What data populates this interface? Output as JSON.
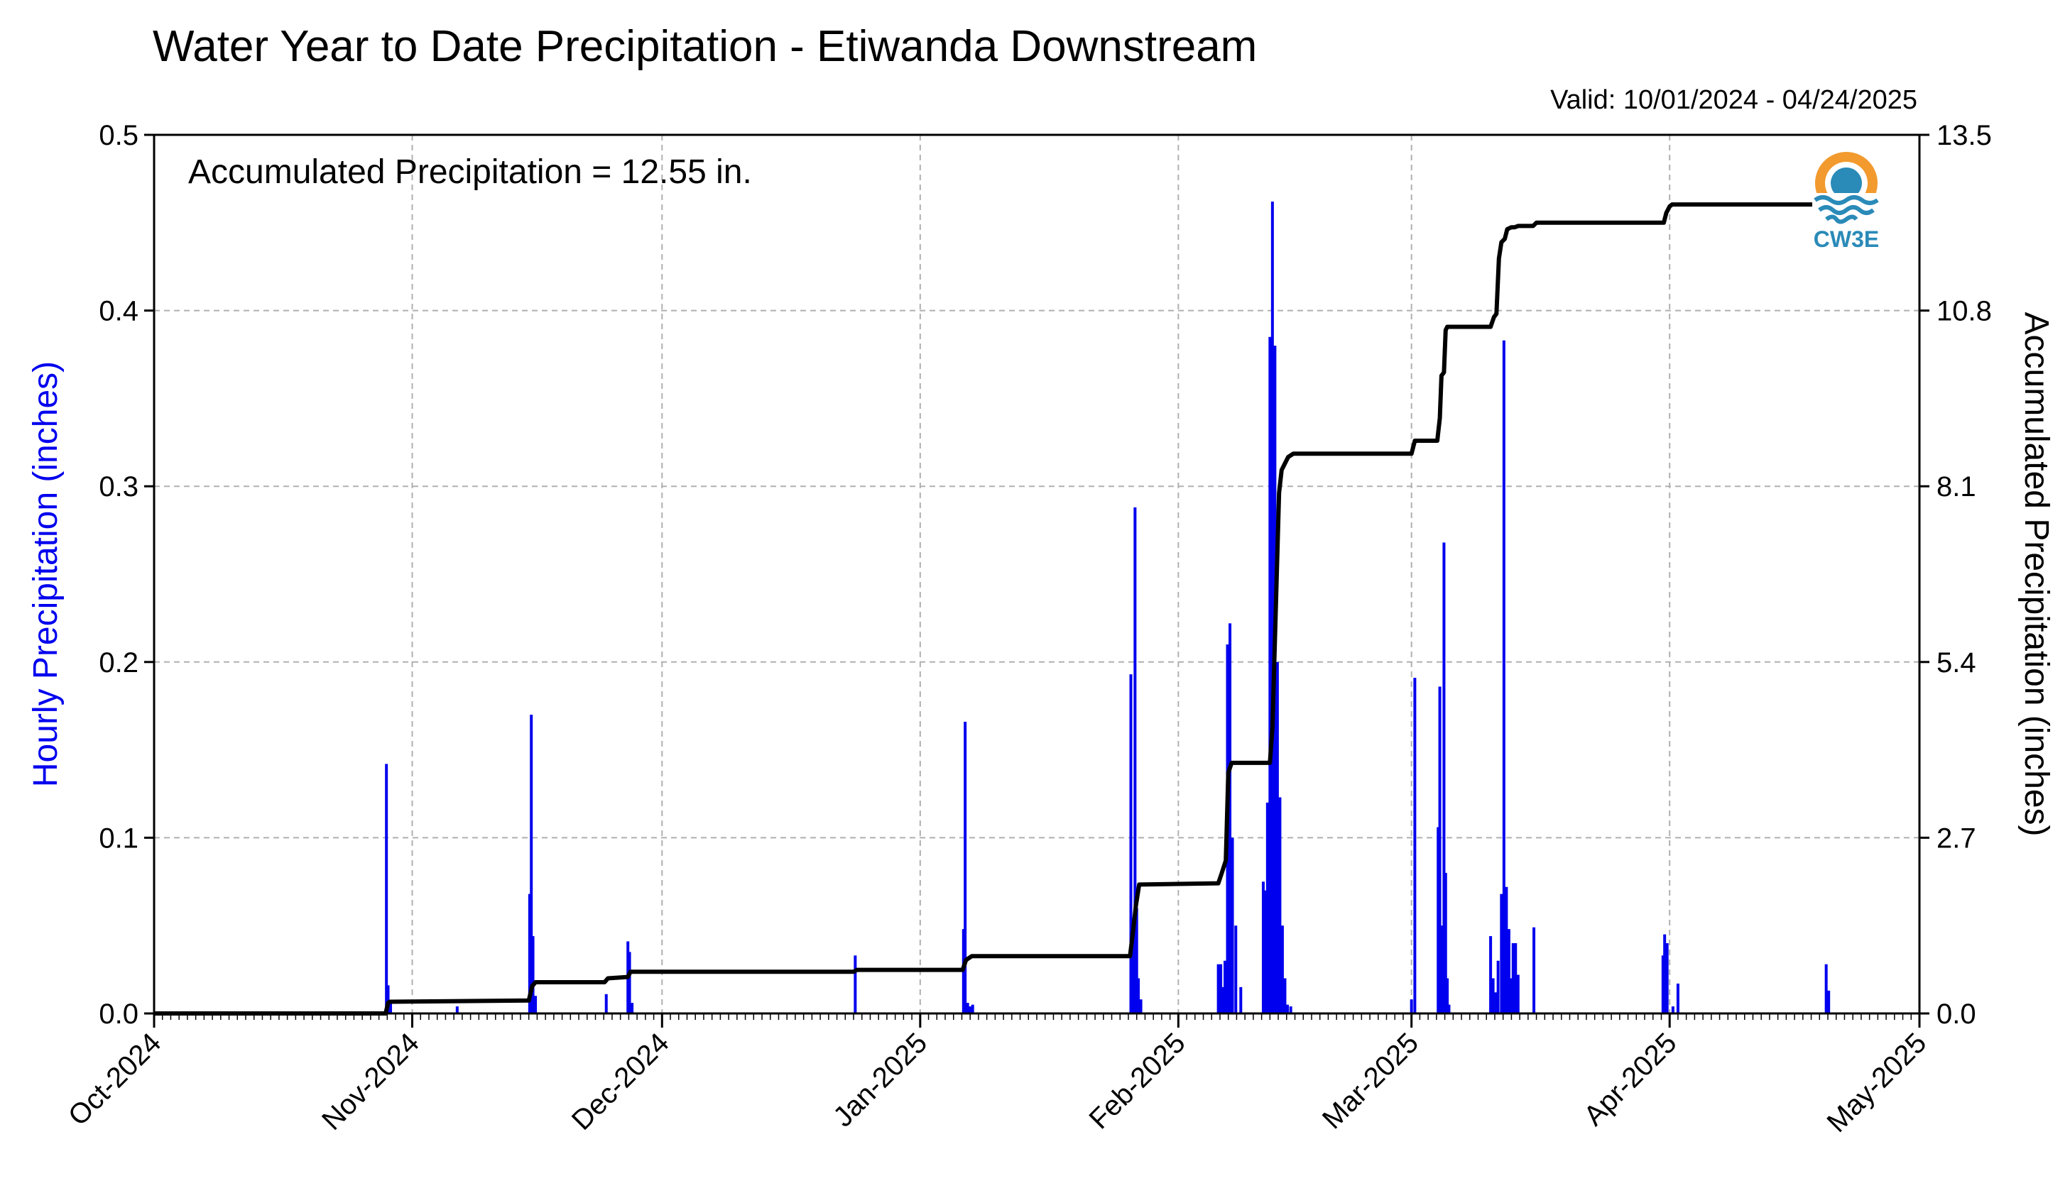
{
  "chart_data": {
    "type": "bar",
    "title": "Water Year to Date Precipitation - Etiwanda Downstream",
    "valid": "Valid: 10/01/2024 - 04/24/2025",
    "annotation": "Accumulated Precipitation = 12.55 in.",
    "logo_text": "CW3E",
    "ylabel_left": "Hourly Precipitation (inches)",
    "ylabel_right": "Accumulated Precipitation (inches)",
    "ylim_left": [
      0,
      0.5
    ],
    "ylim_right": [
      0,
      13.5
    ],
    "left_ticks": [
      "0.0",
      "0.1",
      "0.2",
      "0.3",
      "0.4",
      "0.5"
    ],
    "right_ticks": [
      "0.0",
      "2.7",
      "5.4",
      "8.1",
      "10.8",
      "13.5"
    ],
    "x_tick_labels": [
      "Oct-2024",
      "Nov-2024",
      "Dec-2024",
      "Jan-2025",
      "Feb-2025",
      "Mar-2025",
      "Apr-2025",
      "May-2025"
    ],
    "xlim_days": [
      0,
      212
    ],
    "grid": true,
    "colors": {
      "hourly": "#0000ee",
      "accumulated": "#000000",
      "grid": "#b0b0b0",
      "logo_orange": "#f29a2e",
      "logo_blue": "#2a8ab8"
    },
    "hourly_series": {
      "name": "Hourly Precipitation",
      "x_days": [
        27.9,
        28.1,
        28.4,
        36.4,
        45.1,
        45.3,
        45.5,
        45.8,
        54.3,
        56.9,
        57.1,
        57.4,
        84.2,
        97.2,
        97.4,
        97.7,
        98.0,
        98.3,
        117.3,
        117.5,
        117.8,
        118.0,
        118.2,
        118.5,
        127.8,
        128.1,
        128.4,
        128.6,
        128.9,
        129.2,
        129.5,
        129.9,
        130.5,
        133.2,
        133.5,
        133.7,
        134.0,
        134.3,
        134.6,
        134.9,
        135.2,
        135.5,
        135.8,
        136.1,
        136.5,
        151.0,
        151.4,
        154.2,
        154.4,
        154.6,
        154.9,
        155.1,
        155.3,
        155.5,
        160.5,
        160.8,
        161.1,
        161.4,
        161.8,
        162.1,
        162.4,
        162.7,
        162.9,
        163.2,
        163.5,
        163.8,
        165.7,
        181.2,
        181.4,
        181.7,
        182.4,
        183.0,
        200.8,
        201.1
      ],
      "values": [
        0.142,
        0.016,
        0.006,
        0.004,
        0.068,
        0.17,
        0.044,
        0.01,
        0.011,
        0.041,
        0.035,
        0.006,
        0.033,
        0.048,
        0.166,
        0.006,
        0.004,
        0.005,
        0.193,
        0.05,
        0.288,
        0.06,
        0.02,
        0.008,
        0.028,
        0.028,
        0.015,
        0.03,
        0.21,
        0.222,
        0.1,
        0.05,
        0.015,
        0.075,
        0.07,
        0.12,
        0.385,
        0.462,
        0.38,
        0.2,
        0.123,
        0.05,
        0.02,
        0.005,
        0.004,
        0.008,
        0.191,
        0.106,
        0.186,
        0.05,
        0.268,
        0.08,
        0.02,
        0.005,
        0.044,
        0.02,
        0.012,
        0.03,
        0.068,
        0.383,
        0.072,
        0.048,
        0.02,
        0.04,
        0.04,
        0.022,
        0.049,
        0.033,
        0.045,
        0.04,
        0.004,
        0.017,
        0.028,
        0.013
      ]
    },
    "accumulated_series": {
      "name": "Accumulated Precipitation",
      "x_days": [
        0,
        27.8,
        28.1,
        28.3,
        45.0,
        45.4,
        45.8,
        54.1,
        54.5,
        56.9,
        57.2,
        84.0,
        84.4,
        97.1,
        97.5,
        98.2,
        117.2,
        117.6,
        117.9,
        118.3,
        127.8,
        128.2,
        128.7,
        129.0,
        129.4,
        134.0,
        134.3,
        134.6,
        135.1,
        135.4,
        135.8,
        136.2,
        136.8,
        151.0,
        151.4,
        154.1,
        154.4,
        154.6,
        154.9,
        155.1,
        155.3,
        160.5,
        160.9,
        161.2,
        161.5,
        161.8,
        162.2,
        162.5,
        163.0,
        163.4,
        163.8,
        165.6,
        166.0,
        181.3,
        181.6,
        182.0,
        182.3,
        200.9,
        201.2,
        205.5
      ],
      "values": [
        0,
        0,
        0.16,
        0.18,
        0.2,
        0.42,
        0.48,
        0.48,
        0.54,
        0.56,
        0.64,
        0.64,
        0.67,
        0.67,
        0.82,
        0.88,
        0.88,
        1.3,
        1.65,
        1.98,
        2.0,
        2.15,
        2.35,
        3.7,
        3.85,
        3.85,
        4.4,
        5.75,
        8.0,
        8.35,
        8.45,
        8.55,
        8.6,
        8.6,
        8.8,
        8.8,
        9.15,
        9.8,
        9.85,
        10.5,
        10.55,
        10.55,
        10.7,
        10.75,
        11.6,
        11.85,
        11.9,
        12.05,
        12.08,
        12.08,
        12.1,
        12.1,
        12.15,
        12.15,
        12.3,
        12.4,
        12.43,
        12.43,
        12.55,
        12.55
      ]
    }
  }
}
